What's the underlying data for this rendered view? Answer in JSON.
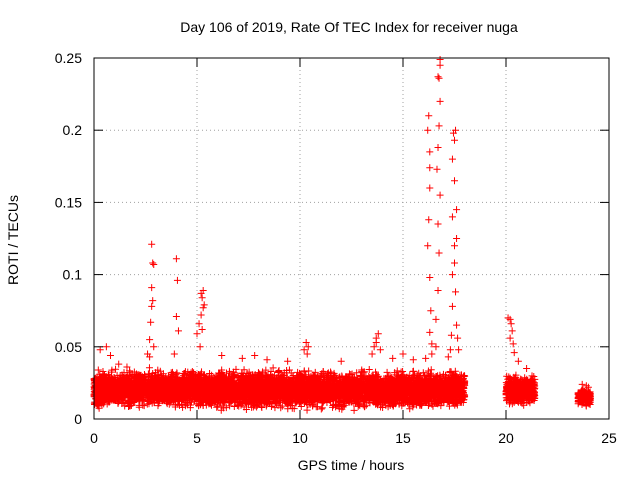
{
  "chart_data": {
    "type": "scatter",
    "title": "Day 106 of 2019, Rate Of TEC Index for receiver nuga",
    "xlabel": "GPS time / hours",
    "ylabel": "ROTI / TECUs",
    "xlim": [
      0,
      25
    ],
    "ylim": [
      0,
      0.25
    ],
    "xticks": [
      0,
      5,
      10,
      15,
      20,
      25
    ],
    "xtick_labels": [
      "0",
      "5",
      "10",
      "15",
      "20",
      "25"
    ],
    "yticks": [
      0,
      0.05,
      0.1,
      0.15,
      0.2,
      0.25
    ],
    "ytick_labels": [
      "0",
      "0.05",
      "0.1",
      "0.15",
      "0.2",
      "0.25"
    ],
    "grid": true,
    "marker": "+",
    "color": "#ff0000",
    "series": [
      {
        "name": "ROTI",
        "points": [
          [
            0.3,
            0.048
          ],
          [
            0.6,
            0.05
          ],
          [
            0.8,
            0.044
          ],
          [
            1.2,
            0.038
          ],
          [
            1.6,
            0.036
          ],
          [
            2.6,
            0.045
          ],
          [
            2.7,
            0.055
          ],
          [
            2.8,
            0.121
          ],
          [
            2.85,
            0.108
          ],
          [
            2.9,
            0.107
          ],
          [
            2.8,
            0.091
          ],
          [
            2.85,
            0.082
          ],
          [
            2.8,
            0.078
          ],
          [
            2.75,
            0.067
          ],
          [
            2.9,
            0.05
          ],
          [
            2.7,
            0.043
          ],
          [
            4.0,
            0.111
          ],
          [
            4.05,
            0.096
          ],
          [
            4.0,
            0.071
          ],
          [
            4.1,
            0.061
          ],
          [
            3.9,
            0.045
          ],
          [
            5.0,
            0.059
          ],
          [
            5.1,
            0.066
          ],
          [
            5.2,
            0.072
          ],
          [
            5.3,
            0.077
          ],
          [
            5.35,
            0.079
          ],
          [
            5.25,
            0.084
          ],
          [
            5.3,
            0.089
          ],
          [
            5.2,
            0.087
          ],
          [
            5.25,
            0.062
          ],
          [
            5.15,
            0.05
          ],
          [
            6.2,
            0.044
          ],
          [
            7.2,
            0.042
          ],
          [
            7.8,
            0.044
          ],
          [
            8.4,
            0.041
          ],
          [
            9.4,
            0.04
          ],
          [
            10.2,
            0.048
          ],
          [
            10.3,
            0.053
          ],
          [
            10.4,
            0.05
          ],
          [
            10.35,
            0.045
          ],
          [
            12.0,
            0.04
          ],
          [
            13.5,
            0.045
          ],
          [
            13.6,
            0.05
          ],
          [
            13.7,
            0.056
          ],
          [
            13.8,
            0.059
          ],
          [
            13.7,
            0.053
          ],
          [
            13.9,
            0.048
          ],
          [
            14.5,
            0.042
          ],
          [
            15.0,
            0.045
          ],
          [
            15.5,
            0.041
          ],
          [
            16.1,
            0.042
          ],
          [
            16.3,
            0.06
          ],
          [
            16.35,
            0.075
          ],
          [
            16.3,
            0.098
          ],
          [
            16.2,
            0.12
          ],
          [
            16.25,
            0.138
          ],
          [
            16.3,
            0.16
          ],
          [
            16.3,
            0.174
          ],
          [
            16.3,
            0.185
          ],
          [
            16.2,
            0.2
          ],
          [
            16.25,
            0.21
          ],
          [
            16.4,
            0.045
          ],
          [
            16.4,
            0.052
          ],
          [
            16.6,
            0.069
          ],
          [
            16.7,
            0.089
          ],
          [
            16.75,
            0.115
          ],
          [
            16.7,
            0.135
          ],
          [
            16.8,
            0.155
          ],
          [
            16.65,
            0.173
          ],
          [
            16.7,
            0.188
          ],
          [
            16.75,
            0.203
          ],
          [
            16.8,
            0.22
          ],
          [
            16.75,
            0.236
          ],
          [
            16.8,
            0.245
          ],
          [
            16.8,
            0.249
          ],
          [
            16.7,
            0.237
          ],
          [
            16.6,
            0.05
          ],
          [
            17.2,
            0.043
          ],
          [
            17.3,
            0.048
          ],
          [
            17.35,
            0.058
          ],
          [
            17.4,
            0.078
          ],
          [
            17.4,
            0.1
          ],
          [
            17.5,
            0.12
          ],
          [
            17.4,
            0.14
          ],
          [
            17.5,
            0.165
          ],
          [
            17.4,
            0.18
          ],
          [
            17.5,
            0.193
          ],
          [
            17.45,
            0.198
          ],
          [
            17.55,
            0.2
          ],
          [
            17.6,
            0.145
          ],
          [
            17.6,
            0.125
          ],
          [
            17.5,
            0.108
          ],
          [
            17.55,
            0.088
          ],
          [
            17.6,
            0.065
          ],
          [
            17.65,
            0.056
          ],
          [
            17.7,
            0.048
          ],
          [
            20.1,
            0.07
          ],
          [
            20.2,
            0.069
          ],
          [
            20.25,
            0.066
          ],
          [
            20.3,
            0.061
          ],
          [
            20.2,
            0.056
          ],
          [
            20.35,
            0.052
          ],
          [
            20.4,
            0.046
          ],
          [
            20.6,
            0.04
          ],
          [
            21.0,
            0.035
          ],
          [
            23.7,
            0.024
          ],
          [
            23.9,
            0.023
          ],
          [
            24.0,
            0.022
          ]
        ],
        "dense_bands": [
          {
            "x_start": 0.0,
            "x_end": 18.0,
            "y_min": 0.005,
            "y_max": 0.036
          },
          {
            "x_start": 20.0,
            "x_end": 21.4,
            "y_min": 0.008,
            "y_max": 0.032
          },
          {
            "x_start": 23.5,
            "x_end": 24.1,
            "y_min": 0.008,
            "y_max": 0.022
          }
        ]
      }
    ]
  }
}
